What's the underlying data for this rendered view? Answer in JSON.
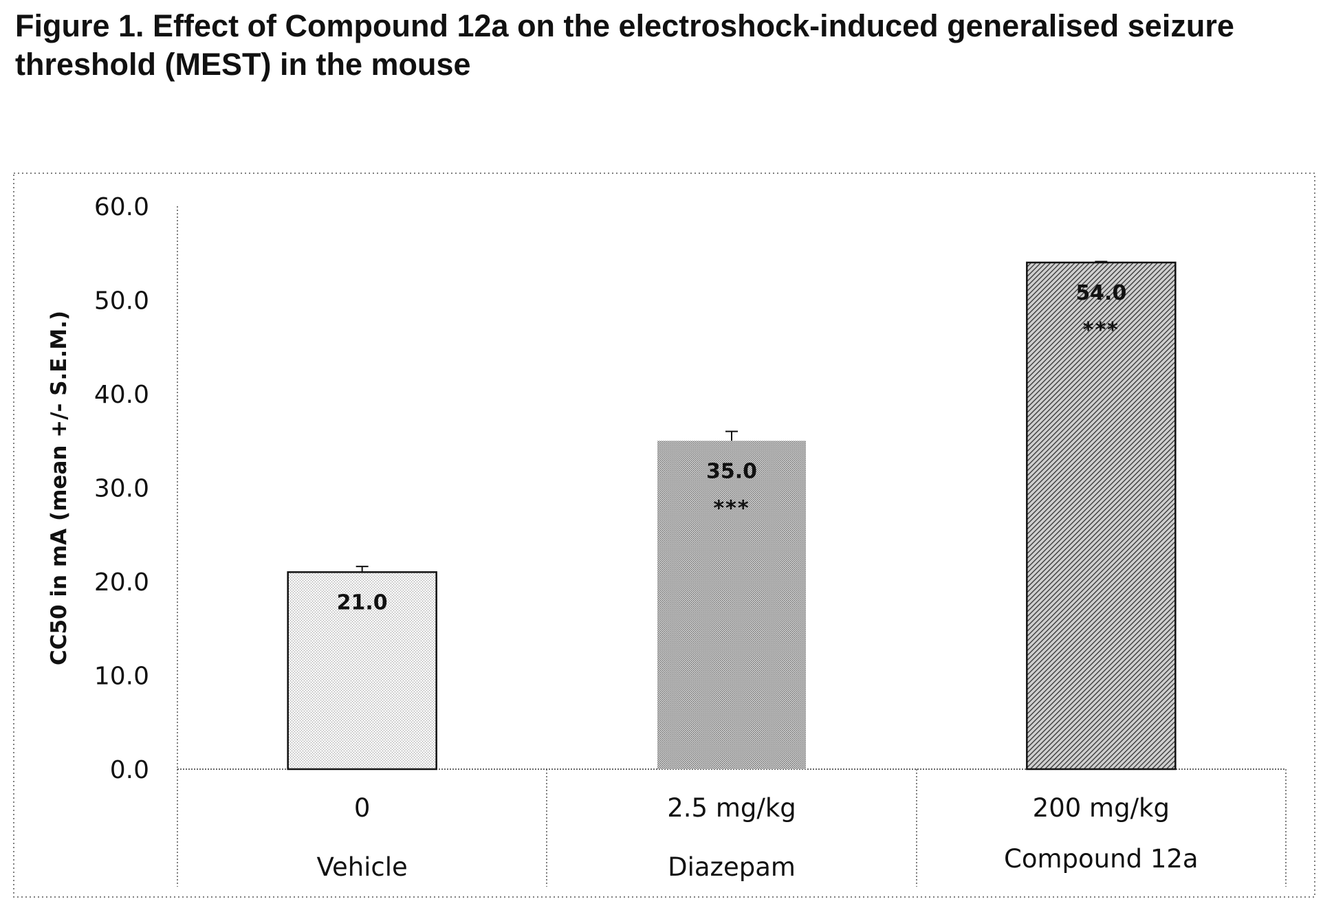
{
  "figure_title": "Figure 1. Effect of Compound 12a on the electroshock-induced generalised seizure threshold (MEST) in the mouse",
  "chart_data": {
    "type": "bar",
    "title": "Figure 1. Effect of Compound 12a on the electroshock-induced generalised seizure threshold (MEST) in the mouse",
    "xlabel": "",
    "ylabel": "CC50 in mA (mean +/- S.E.M.)",
    "ylim": [
      0,
      60
    ],
    "yticks": [
      "0.0",
      "10.0",
      "20.0",
      "30.0",
      "40.0",
      "50.0",
      "60.0"
    ],
    "categories": [
      {
        "dose": "0",
        "group": "Vehicle"
      },
      {
        "dose": "2.5 mg/kg",
        "group": "Diazepam"
      },
      {
        "dose": "200 mg/kg",
        "group": "Compound 12a"
      }
    ],
    "values": [
      21.0,
      35.0,
      54.0
    ],
    "errors": [
      0.6,
      1.0,
      0.1
    ],
    "data_labels": [
      "21.0",
      "35.0",
      "54.0"
    ],
    "significance": [
      "",
      "***",
      "***"
    ],
    "bar_fill": [
      "light-dotted",
      "medium-dotted",
      "diagonal-hatch"
    ],
    "grid": false,
    "legend": "none",
    "colors": {
      "bar_outline": "#111111",
      "text": "#111111",
      "background": "#ffffff"
    }
  }
}
